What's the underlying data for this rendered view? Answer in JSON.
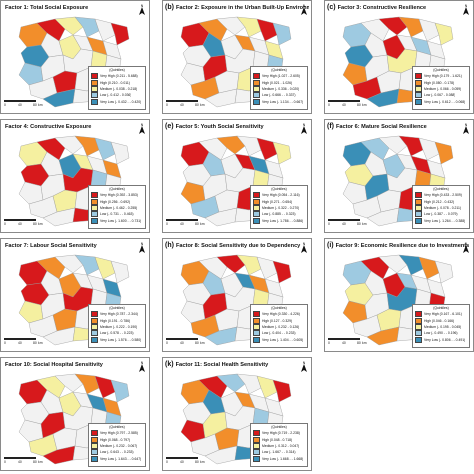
{
  "colors": {
    "very_high": "#d7191c",
    "high": "#f28e2b",
    "medium": "#f5f0a0",
    "low": "#9ecae1",
    "very_low": "#3a8fb7",
    "base_fill": "#f2f2f2",
    "border": "#9a9a9a"
  },
  "common": {
    "legend_header": "(Quintiles)",
    "scale_0": "0",
    "scale_40": "40",
    "scale_80": "80",
    "scale_unit": "km",
    "north": "N"
  },
  "panels": [
    {
      "letter": "",
      "title": "Factor 1: Total Social Exposure",
      "legend": [
        "Very High (0.211 - 5.688)",
        "High (0.210 - 0.011)",
        "Medium (- 0.038 - 0.218)",
        "Low (- 0.412 - 0.036)",
        "Very Low (- 0.432 - - 0.420)"
      ]
    },
    {
      "letter": "(b)",
      "title": "Factor 2: Exposure in the Urban Built-Up Environment",
      "legend": [
        "Very High (1.027 - 2.605)",
        "High (0.021 - 1.026)",
        "Medium (- 0.336 - 0.020)",
        "Low (- 0.666 - - 0.337)",
        "Very Low (- 1.134 - - 0.667)"
      ]
    },
    {
      "letter": "(c)",
      "title": "Factor 3: Constructive Resilience",
      "legend": [
        "Very High (0.179 - 1.621)",
        "High (0.080 - 0.178)",
        "Medium (- 0.066 - 0.059)",
        "Low (- 0.067 - 0.088)",
        "Very Low (- 0.612 - - 0.068)"
      ]
    },
    {
      "letter": "",
      "title": "Factor 4: Constructive Exposure",
      "legend": [
        "Very High (0.392 - 3.853)",
        "High (0.256 - 0.692)",
        "Medium (- 0.462 - 0.255)",
        "Low (- 0.731 - - 0.463)",
        "Very Low (- 1.600 - - 0.731)"
      ]
    },
    {
      "letter": "(e)",
      "title": "Factor 5: Youth Social Sensitivity",
      "legend": [
        "Very High (0.054 - 2.116)",
        "High (0.271 - 0.654)",
        "Medium (- 0.322 - 0.270)",
        "Low (- 0.885 - - 0.323)",
        "Very Low (- 1.786 - - 0.886)"
      ]
    },
    {
      "letter": "(f)",
      "title": "Factor 6: Mature Social Resilience",
      "legend": [
        "Very High (0.433 - 2.509)",
        "High (0.212 - 0.432)",
        "Medium (- 0.078 - 0.211)",
        "Low (- 0.387 - - 0.079)",
        "Very Low (- 1.264 - - 0.388)"
      ]
    },
    {
      "letter": "",
      "title": "Factor 7: Labour Social Sensitivity",
      "legend": [
        "Very High (0.787 - 2.344)",
        "High (0.191 - 0.786)",
        "Medium (- 0.222 - 0.190)",
        "Low (- 0.578 - - 0.223)",
        "Very Low (- 1.576 - - 0.580)"
      ]
    },
    {
      "letter": "(h)",
      "title": "Factor 8: Social Sensitivity due to Dependency",
      "legend": [
        "Very High (0.330 - 4.226)",
        "High (0.127 - 0.329)",
        "Medium (- 0.232 - 0.126)",
        "Low (- 0.404 - - 0.233)",
        "Very Low (- 1.404 - - 0.605)"
      ]
    },
    {
      "letter": "(i)",
      "title": "Factor 9: Economic Resilience due to Investments",
      "legend": [
        "Very High (0.167 - 6.101)",
        "High (0.046 - 0.166)",
        "Medium (- 0.195 - 0.045)",
        "Low (- 0.490 - - 0.196)",
        "Very Low (- 0.806 - - 0.491)"
      ]
    },
    {
      "letter": "",
      "title": "Factor 10: Social Hospital Sensitivity",
      "legend": [
        "Very High (0.797 - 2.585)",
        "High (0.068 - 0.797)",
        "Medium (- 0.232 - 0.067)",
        "Low (- 0.643 - - 0.233)",
        "Very Low (- 1.643 - - 0.647)"
      ]
    },
    {
      "letter": "(k)",
      "title": "Factor 11: Social Health Sensitivity",
      "legend": [
        "Very High (0.719 - 2.238)",
        "High (0.048 - 0.718)",
        "Medium (- 0.312 - 0.047)",
        "Low (- 1.667 - - 0.314)",
        "Very Low (- 1.668 - - 1.668)"
      ]
    }
  ]
}
